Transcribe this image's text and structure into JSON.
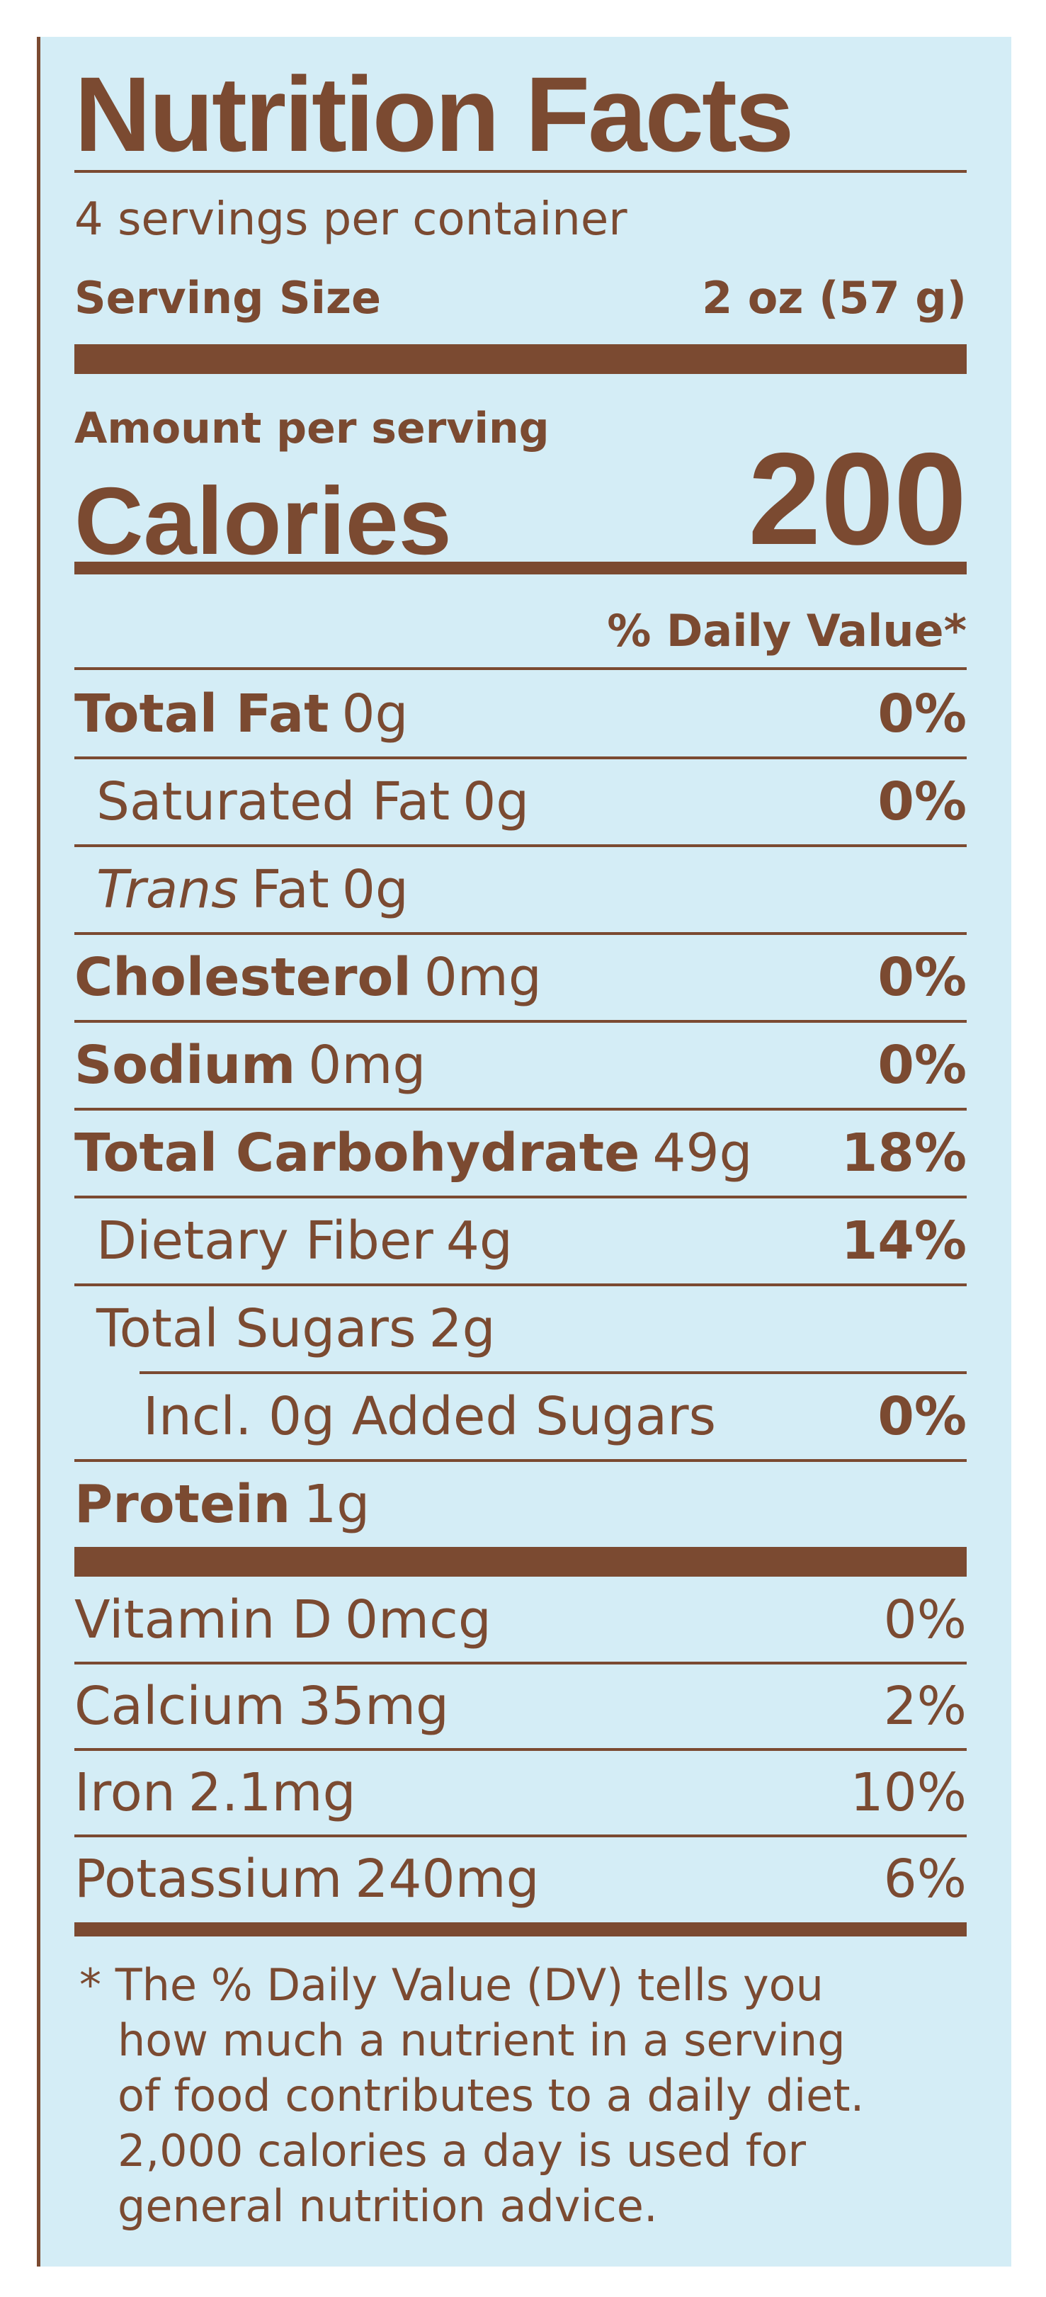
{
  "header": {
    "title": "Nutrition Facts",
    "servings": "4 servings per container",
    "serving_size_label": "Serving Size",
    "serving_size_value": "2 oz (57 g)"
  },
  "calories": {
    "amount_label": "Amount per serving",
    "label": "Calories",
    "value": "200"
  },
  "dv_header": "% Daily Value*",
  "nutrients": [
    {
      "name": "Total Fat",
      "amount": "0g",
      "dv": "0%",
      "sub": [
        {
          "name": "Saturated Fat",
          "amount": "0g",
          "dv": "0%"
        },
        {
          "name_italic": "Trans",
          "name": "Fat",
          "amount": "0g"
        }
      ]
    },
    {
      "name": "Cholesterol",
      "amount": "0mg",
      "dv": "0%"
    },
    {
      "name": "Sodium",
      "amount": "0mg",
      "dv": "0%"
    },
    {
      "name": "Total Carbohydrate",
      "amount": "49g",
      "dv": "18%",
      "sub": [
        {
          "name": "Dietary Fiber",
          "amount": "4g",
          "dv": "14%"
        },
        {
          "name": "Total Sugars",
          "amount": "2g",
          "sub": [
            {
              "name": "Incl. 0g Added Sugars",
              "dv": "0%"
            }
          ]
        }
      ]
    },
    {
      "name": "Protein",
      "amount": "1g"
    }
  ],
  "vitamins": [
    {
      "name": "Vitamin D",
      "amount": "0mcg",
      "dv": "0%"
    },
    {
      "name": "Calcium",
      "amount": "35mg",
      "dv": "2%"
    },
    {
      "name": "Iron",
      "amount": "2.1mg",
      "dv": "10%"
    },
    {
      "name": "Potassium",
      "amount": "240mg",
      "dv": "6%"
    }
  ],
  "footnote": [
    "* The % Daily Value (DV) tells you",
    "how much a nutrient in a serving",
    "of food contributes to a daily diet.",
    "2,000 calories a day is used for",
    "general nutrition advice."
  ]
}
